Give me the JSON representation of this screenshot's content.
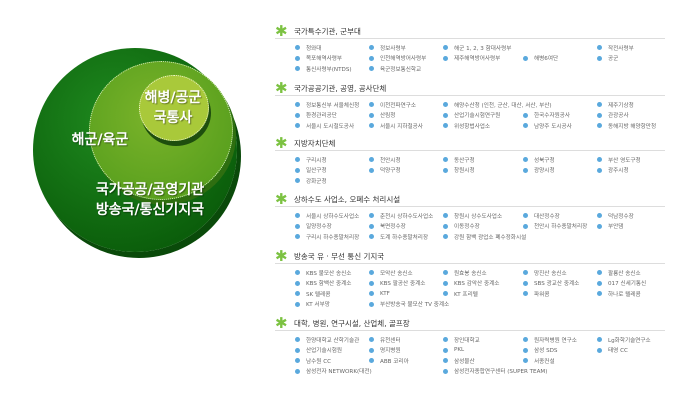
{
  "diagram": {
    "inner": [
      "해병/공군",
      "국통사"
    ],
    "middle": "해군/육군",
    "outer": [
      "국가공공/공영기관",
      "방송국/통신기지국"
    ]
  },
  "colors": {
    "outer": "#0b6e0b",
    "middle": "#5fa31f",
    "inner": "#a9c93a",
    "asterisk": "#7cc242",
    "bullet": "#5aa9dd"
  },
  "sections": [
    {
      "title": "국가특수기관, 군부대",
      "items": [
        "청와대",
        "정보사령부",
        "해군 1, 2, 3 함대사령부",
        "작전사령부",
        "목포해역사령부",
        "인천해역방어사령부",
        "제주해역방어사령부",
        "해병6여단",
        "공군",
        "통신사령부(NTDS)",
        "육군정보통신학교"
      ]
    },
    {
      "title": "국가공공기관, 공영, 공사단체",
      "items": [
        "정보통신부 서울체신청",
        "이천전파연구소",
        "해양수산청 (인천, 군산, 대산, 서산, 부산)",
        "",
        "제주기상청",
        "환경관리공단",
        "산림청",
        "산업기술시험연구원",
        "한국수자원공사",
        "관광공사",
        "서울시 도시철도공사",
        "서울시 지하철공사",
        "위성항법사업소",
        "남양주 도시공사",
        "동해지방 해양항만청"
      ]
    },
    {
      "title": "지방자치단체",
      "items": [
        "구리시청",
        "천안시청",
        "동산구청",
        "성북구청",
        "부산 영도구청",
        "일산구청",
        "덕양구청",
        "창원시청",
        "광양시청",
        "광주시청",
        "강화군청"
      ]
    },
    {
      "title": "상하수도 사업소, 오폐수 처리시설",
      "items": [
        "서울시 상하수도사업소",
        "춘천시 상하수도사업소",
        "창원시 상수도사업소",
        "대산정수장",
        "덕남정수장",
        "일양정수장",
        "북면정수장",
        "이동정수장",
        "천안시 하수종말처리장",
        "부안댐",
        "구리시 하수종말처리장",
        "도계 하수종말처리장",
        "강원 함백 광업소 폐수정화시설"
      ]
    },
    {
      "title": "방송국 유 · 무선 통신 기지국",
      "items": [
        "KBS 불모산 송신소",
        "모악산 송신소",
        "원효봉 송신소",
        "망진산 송신소",
        "팔룡산 송신소",
        "KBS 함백산 중계소",
        "KBS 팔공산 중계소",
        "KBS 감악산 중계소",
        "SBS 광교산 중계소",
        "017 신세기통신",
        "SK 텔레콤",
        "KTF",
        "KT 프리텔",
        "파워콤",
        "하나로 텔레콤",
        "KT 서부망",
        "부산방송국 불모산 TV 중계소"
      ]
    },
    {
      "title": "대학, 병원, 연구시설, 산업체, 골프장",
      "items": [
        "한양대학교 산학기술관",
        "유천센터",
        "장인대학교",
        "원자력병원 연구소",
        "Lg화학기술연구소",
        "산업기술시험원",
        "명지병원",
        "PKL",
        "삼성 SDS",
        "태영 CC",
        "남수원 CC",
        "ABB 코리아",
        "삼성물산",
        "서종컨설",
        "삼성전자 NETWORK(대전)",
        "삼성전자종합연구센터 (SUPER TEAM)"
      ]
    }
  ]
}
